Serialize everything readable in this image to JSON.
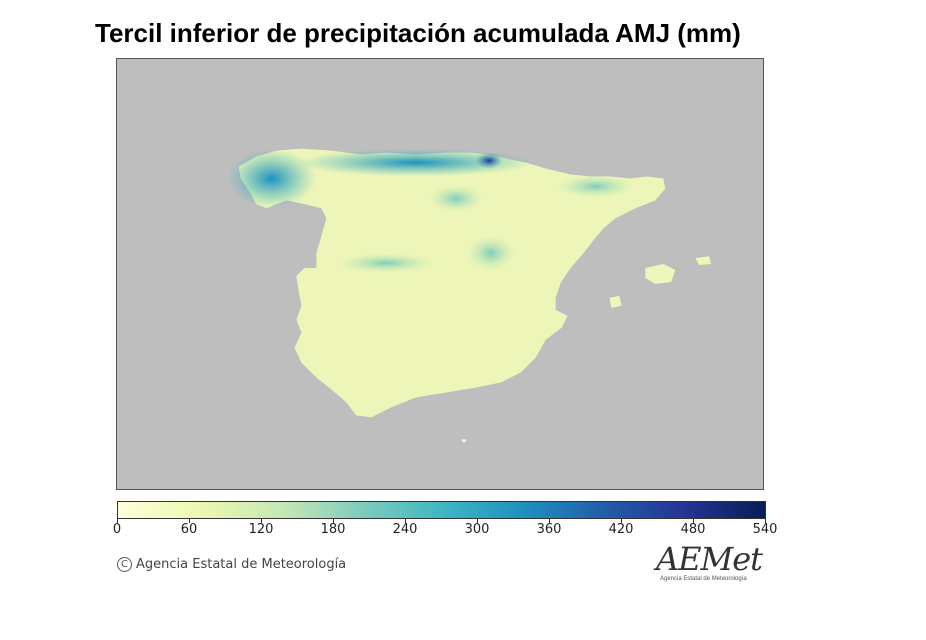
{
  "title": "Tercil inferior de precipitación acumulada AMJ (mm)",
  "colors": {
    "background_sea": "#bebebe",
    "low": "#ffffcc",
    "mid": "#41b6c4",
    "high": "#081d58"
  },
  "colorbar": {
    "min": 0,
    "max": 540,
    "tick_labels": [
      "0",
      "60",
      "120",
      "180",
      "240",
      "300",
      "360",
      "420",
      "480",
      "540"
    ],
    "stops": [
      "#ffffd9",
      "#edf8b1",
      "#c7e9b4",
      "#7fcdbb",
      "#41b6c4",
      "#1d91c0",
      "#225ea8",
      "#253494",
      "#081d58"
    ]
  },
  "footer": {
    "copyright_symbol": "C",
    "copyright_text": "Agencia Estatal de Meteorología",
    "logo_text": "AEMet",
    "logo_subtitle": "Agencia Estatal de Meteorología"
  }
}
